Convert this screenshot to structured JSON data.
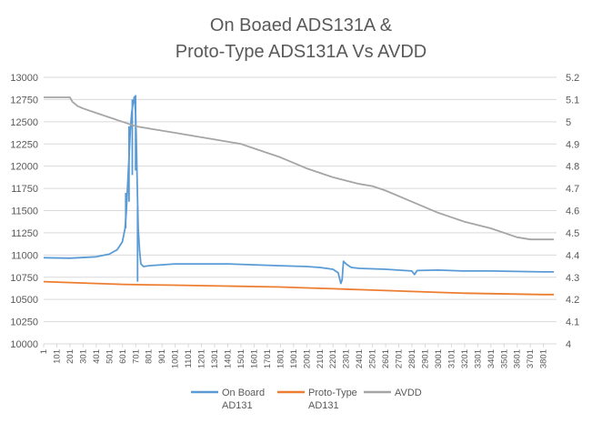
{
  "chart_data": {
    "type": "line",
    "title_lines": [
      "On Boaed ADS131A &",
      "Proto-Type ADS131A Vs AVDD"
    ],
    "xlabel": "",
    "ylabel": "",
    "y2label": "",
    "x_range": [
      1,
      3900
    ],
    "x_ticks": [
      "1",
      "101",
      "201",
      "301",
      "401",
      "501",
      "601",
      "701",
      "801",
      "901",
      "1001",
      "1101",
      "1201",
      "1301",
      "1401",
      "1501",
      "1601",
      "1701",
      "1801",
      "1901",
      "2001",
      "2101",
      "2201",
      "2301",
      "2401",
      "2501",
      "2601",
      "2701",
      "2801",
      "2901",
      "3001",
      "3101",
      "3201",
      "3301",
      "3401",
      "3501",
      "3601",
      "3701",
      "3801"
    ],
    "y_left": {
      "min": 10000,
      "max": 13000,
      "ticks": [
        "10000",
        "10250",
        "10500",
        "10750",
        "11000",
        "11250",
        "11500",
        "11750",
        "12000",
        "12250",
        "12500",
        "12750",
        "13000"
      ]
    },
    "y_right": {
      "min": 4,
      "max": 5.2,
      "ticks": [
        "4",
        "4.1",
        "4.2",
        "4.3",
        "4.4",
        "4.5",
        "4.6",
        "4.7",
        "4.8",
        "4.9",
        "5",
        "5.1",
        "5.2"
      ]
    },
    "gridlines": true,
    "legend_position": "bottom",
    "series": [
      {
        "name_lines": [
          "On Board",
          "AD131"
        ],
        "axis": "left",
        "color": "#5B9BD5",
        "x": [
          1,
          200,
          400,
          500,
          560,
          600,
          620,
          630,
          640,
          650,
          660,
          670,
          680,
          690,
          700,
          705,
          710,
          715,
          720,
          730,
          740,
          760,
          800,
          900,
          1000,
          1200,
          1400,
          1600,
          1800,
          2000,
          2100,
          2200,
          2240,
          2260,
          2270,
          2280,
          2300,
          2320,
          2340,
          2400,
          2600,
          2800,
          2820,
          2840,
          3000,
          3200,
          3400,
          3600,
          3800,
          3880
        ],
        "y": [
          10970,
          10965,
          10980,
          11010,
          11060,
          11150,
          11300,
          11500,
          11800,
          12100,
          12400,
          12600,
          12700,
          12780,
          12600,
          12350,
          11950,
          11600,
          11300,
          11050,
          10900,
          10870,
          10880,
          10890,
          10900,
          10900,
          10900,
          10890,
          10880,
          10870,
          10860,
          10840,
          10800,
          10680,
          10720,
          10930,
          10900,
          10880,
          10860,
          10850,
          10840,
          10820,
          10780,
          10825,
          10830,
          10820,
          10820,
          10815,
          10810,
          10810
        ],
        "spike_x": [
          625,
          650,
          675,
          700,
          715
        ],
        "spike_lo": [
          11300,
          11600,
          11900,
          11950,
          10700
        ],
        "spike_hi": [
          11700,
          12450,
          12750,
          12800,
          11550
        ]
      },
      {
        "name_lines": [
          "Proto-Type",
          "AD131"
        ],
        "axis": "left",
        "color": "#ED7D31",
        "x": [
          1,
          200,
          400,
          600,
          800,
          1000,
          1200,
          1400,
          1600,
          1800,
          2000,
          2200,
          2400,
          2600,
          2800,
          3000,
          3200,
          3400,
          3600,
          3800,
          3880
        ],
        "y": [
          10700,
          10690,
          10680,
          10670,
          10665,
          10660,
          10655,
          10650,
          10645,
          10640,
          10630,
          10620,
          10610,
          10600,
          10590,
          10580,
          10570,
          10565,
          10560,
          10555,
          10555
        ]
      },
      {
        "name_lines": [
          "AVDD"
        ],
        "axis": "right",
        "color": "#A5A5A5",
        "x": [
          1,
          100,
          200,
          220,
          260,
          300,
          400,
          500,
          600,
          700,
          800,
          1000,
          1200,
          1400,
          1500,
          1600,
          1800,
          2000,
          2200,
          2400,
          2500,
          2600,
          2800,
          3000,
          3100,
          3200,
          3400,
          3600,
          3700,
          3880
        ],
        "y": [
          5.11,
          5.11,
          5.11,
          5.09,
          5.07,
          5.06,
          5.04,
          5.02,
          5.0,
          4.98,
          4.97,
          4.95,
          4.93,
          4.91,
          4.9,
          4.88,
          4.84,
          4.79,
          4.75,
          4.72,
          4.71,
          4.69,
          4.64,
          4.59,
          4.57,
          4.55,
          4.52,
          4.48,
          4.47,
          4.47
        ]
      }
    ]
  }
}
